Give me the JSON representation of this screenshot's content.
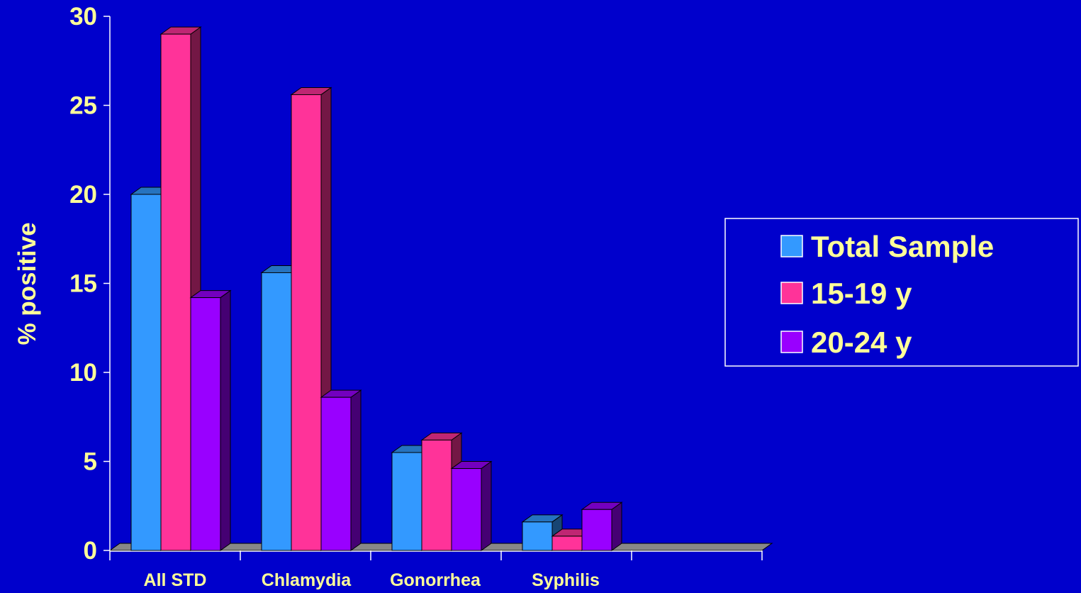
{
  "chart_data": {
    "type": "bar",
    "title": "",
    "xlabel": "",
    "ylabel": "% positive",
    "ylim": [
      0,
      30
    ],
    "yticks": [
      "0",
      "5",
      "10",
      "15",
      "20",
      "25",
      "30"
    ],
    "categories": [
      "All STD",
      "Chlamydia",
      "Gonorrhea",
      "Syphilis"
    ],
    "series": [
      {
        "name": "Total Sample",
        "color": "#3399FF",
        "values": [
          20.0,
          15.6,
          5.5,
          1.6
        ]
      },
      {
        "name": "15-19 y",
        "color": "#FF3399",
        "values": [
          29.0,
          25.6,
          6.2,
          0.8
        ]
      },
      {
        "name": "20-24 y",
        "color": "#9900FF",
        "values": [
          14.2,
          8.6,
          4.6,
          2.3
        ]
      }
    ],
    "legend_position": "right",
    "grid": false,
    "style": "3d-bar",
    "text_color": "#FFFF99",
    "background_color": "#0000CC",
    "floor_color": "#888888"
  }
}
